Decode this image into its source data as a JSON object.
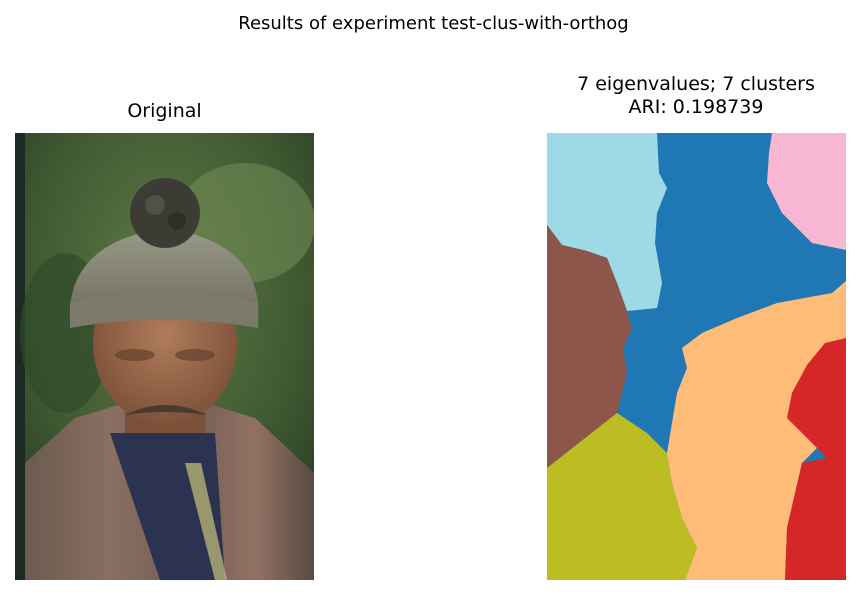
{
  "suptitle": "Results of experiment test-clus-with-orthog",
  "panels": {
    "left_title": "Original",
    "right_title_line1": "7 eigenvalues; 7 clusters",
    "right_title_line2": "ARI: 0.198739"
  },
  "cluster_colors": [
    "#9edae5",
    "#1f77b4",
    "#f7b6d2",
    "#8c564b",
    "#ffbb78",
    "#d62728",
    "#bcbd22"
  ]
}
